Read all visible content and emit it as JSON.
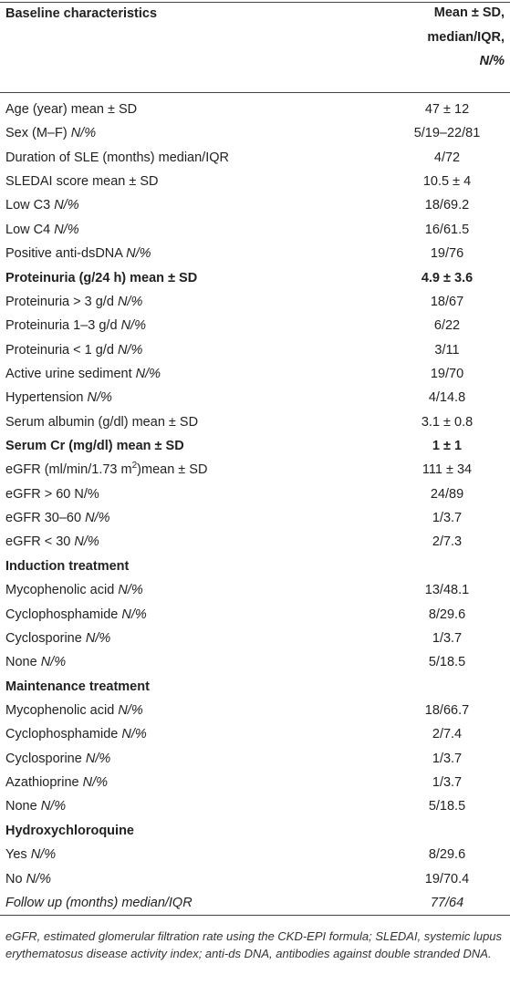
{
  "table": {
    "header": [
      [
        "Baseline characteristics"
      ],
      [
        "Mean ± SD, median/IQR, ",
        {
          "text": "N/%",
          "style": "italic"
        }
      ]
    ],
    "rows": [
      {
        "label": [
          "Age (year) mean ± SD"
        ],
        "value": "47 ± 12"
      },
      {
        "label": [
          "Sex (M–F) ",
          {
            "text": "N/%",
            "style": "italic"
          }
        ],
        "value": "5/19–22/81"
      },
      {
        "label": [
          "Duration of SLE (months) median/IQR"
        ],
        "value": "4/72"
      },
      {
        "label": [
          "SLEDAI score mean ± SD"
        ],
        "value": "10.5 ± 4"
      },
      {
        "label": [
          "Low C3 ",
          {
            "text": "N/%",
            "style": "italic"
          }
        ],
        "value": "18/69.2"
      },
      {
        "label": [
          "Low C4 ",
          {
            "text": "N/%",
            "style": "italic"
          }
        ],
        "value": "16/61.5"
      },
      {
        "label": [
          "Positive anti-dsDNA ",
          {
            "text": "N/%",
            "style": "italic"
          }
        ],
        "value": "19/76"
      },
      {
        "label": [
          "Proteinuria (g/24 h) mean ± SD"
        ],
        "value": "4.9 ± 3.6",
        "style": "bold"
      },
      {
        "label": [
          "Proteinuria > 3 g/d ",
          {
            "text": "N/%",
            "style": "italic"
          }
        ],
        "value": "18/67"
      },
      {
        "label": [
          "Proteinuria 1–3 g/d ",
          {
            "text": "N/%",
            "style": "italic"
          }
        ],
        "value": "6/22"
      },
      {
        "label": [
          "Proteinuria < 1 g/d ",
          {
            "text": "N/%",
            "style": "italic"
          }
        ],
        "value": "3/11"
      },
      {
        "label": [
          "Active urine sediment ",
          {
            "text": "N/%",
            "style": "italic"
          }
        ],
        "value": "19/70"
      },
      {
        "label": [
          "Hypertension ",
          {
            "text": "N/%",
            "style": "italic"
          }
        ],
        "value": "4/14.8"
      },
      {
        "label": [
          "Serum albumin (g/dl) mean ± SD"
        ],
        "value": "3.1 ± 0.8"
      },
      {
        "label": [
          "Serum Cr (mg/dl) mean ± SD"
        ],
        "value": "1 ± 1",
        "style": "bold"
      },
      {
        "label": [
          "eGFR (ml/min/1.73 m",
          {
            "text": "2",
            "style": "superscript"
          },
          ")mean ± SD"
        ],
        "value": "111 ± 34"
      },
      {
        "label": [
          "eGFR > 60 N/%"
        ],
        "value": "24/89"
      },
      {
        "label": [
          "eGFR 30–60 ",
          {
            "text": "N/%",
            "style": "italic"
          }
        ],
        "value": "1/3.7"
      },
      {
        "label": [
          "eGFR < 30 ",
          {
            "text": "N/%",
            "style": "italic"
          }
        ],
        "value": "2/7.3"
      },
      {
        "label": [
          "Induction treatment"
        ],
        "style": "bold"
      },
      {
        "label": [
          "Mycophenolic acid ",
          {
            "text": "N/%",
            "style": "italic"
          }
        ],
        "value": "13/48.1"
      },
      {
        "label": [
          "Cyclophosphamide ",
          {
            "text": "N/%",
            "style": "italic"
          }
        ],
        "value": "8/29.6"
      },
      {
        "label": [
          "Cyclosporine ",
          {
            "text": "N/%",
            "style": "italic"
          }
        ],
        "value": "1/3.7"
      },
      {
        "label": [
          "None ",
          {
            "text": "N/%",
            "style": "italic"
          }
        ],
        "value": "5/18.5"
      },
      {
        "label": [
          "Maintenance treatment"
        ],
        "style": "bold"
      },
      {
        "label": [
          "Mycophenolic acid ",
          {
            "text": "N/%",
            "style": "italic"
          }
        ],
        "value": "18/66.7"
      },
      {
        "label": [
          "Cyclophosphamide ",
          {
            "text": "N/%",
            "style": "italic"
          }
        ],
        "value": "2/7.4"
      },
      {
        "label": [
          "Cyclosporine ",
          {
            "text": "N/%",
            "style": "italic"
          }
        ],
        "value": "1/3.7"
      },
      {
        "label": [
          "Azathioprine ",
          {
            "text": "N/%",
            "style": "italic"
          }
        ],
        "value": "1/3.7"
      },
      {
        "label": [
          "None ",
          {
            "text": "N/%",
            "style": "italic"
          }
        ],
        "value": "5/18.5"
      },
      {
        "label": [
          "Hydroxychloroquine"
        ],
        "style": "bold"
      },
      {
        "label": [
          "Yes ",
          {
            "text": "N/%",
            "style": "italic"
          }
        ],
        "value": "8/29.6"
      },
      {
        "label": [
          "No ",
          {
            "text": "N/%",
            "style": "italic"
          }
        ],
        "value": "19/70.4"
      },
      {
        "label": [
          "Follow up (months) median/IQR"
        ],
        "value": "77/64",
        "style": "italic"
      }
    ],
    "footnote": "eGFR, estimated glomerular filtration rate using the CKD-EPI formula; SLEDAI, systemic lupus erythematosus disease activity index; anti-ds DNA, antibodies against double stranded DNA."
  }
}
